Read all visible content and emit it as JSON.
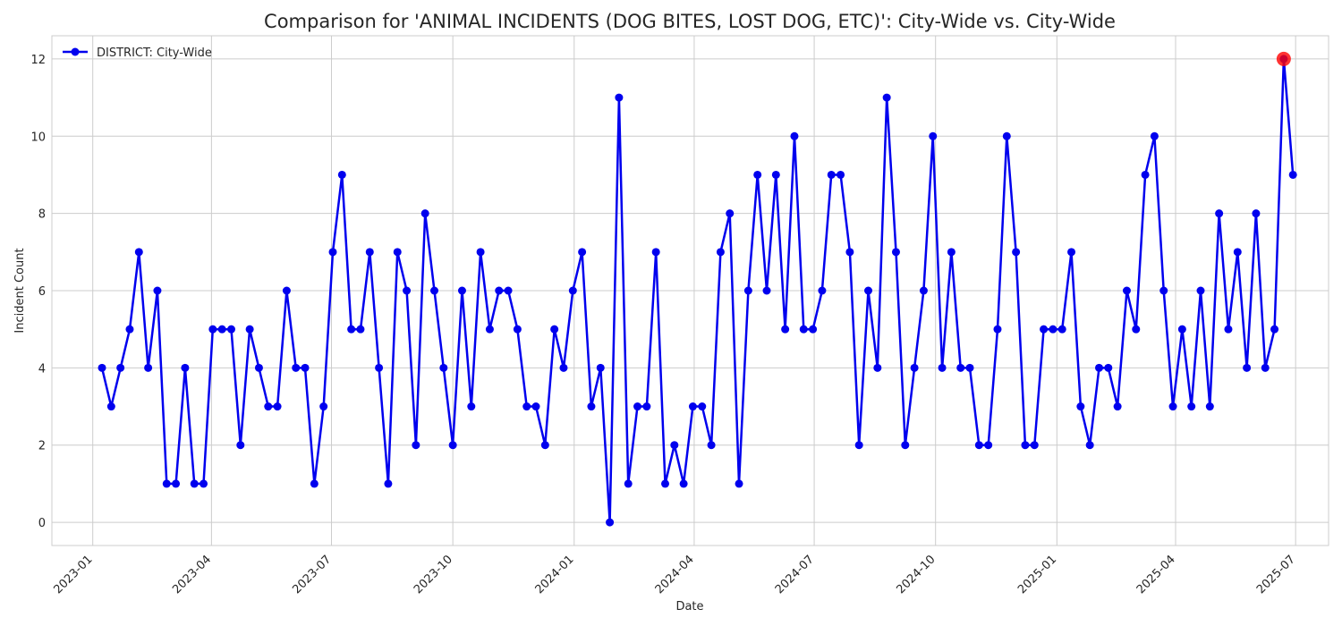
{
  "chart_data": {
    "type": "line",
    "title": "Comparison for 'ANIMAL INCIDENTS (DOG BITES, LOST DOG, ETC)': City-Wide vs. City-Wide",
    "xlabel": "Date",
    "ylabel": "Incident Count",
    "x_range": [
      "2022-12-01",
      "2025-07-26"
    ],
    "ylim": [
      -0.6,
      12.6
    ],
    "x_ticks": [
      "2023-01",
      "2023-04",
      "2023-07",
      "2023-10",
      "2024-01",
      "2024-04",
      "2024-07",
      "2024-10",
      "2025-01",
      "2025-04",
      "2025-07"
    ],
    "y_ticks": [
      0,
      2,
      4,
      6,
      8,
      10,
      12
    ],
    "grid": true,
    "legend_position": "upper-left",
    "series": [
      {
        "name": "DISTRICT: City-Wide",
        "color": "#0000ee",
        "x": [
          "2023-01-08",
          "2023-01-15",
          "2023-01-22",
          "2023-01-29",
          "2023-02-05",
          "2023-02-12",
          "2023-02-19",
          "2023-02-26",
          "2023-03-05",
          "2023-03-12",
          "2023-03-19",
          "2023-03-26",
          "2023-04-02",
          "2023-04-09",
          "2023-04-16",
          "2023-04-23",
          "2023-04-30",
          "2023-05-07",
          "2023-05-14",
          "2023-05-21",
          "2023-05-28",
          "2023-06-04",
          "2023-06-11",
          "2023-06-18",
          "2023-06-25",
          "2023-07-02",
          "2023-07-09",
          "2023-07-16",
          "2023-07-23",
          "2023-07-30",
          "2023-08-06",
          "2023-08-13",
          "2023-08-20",
          "2023-08-27",
          "2023-09-03",
          "2023-09-10",
          "2023-09-17",
          "2023-09-24",
          "2023-10-01",
          "2023-10-08",
          "2023-10-15",
          "2023-10-22",
          "2023-10-29",
          "2023-11-05",
          "2023-11-12",
          "2023-11-19",
          "2023-11-26",
          "2023-12-03",
          "2023-12-10",
          "2023-12-17",
          "2023-12-24",
          "2023-12-31",
          "2024-01-07",
          "2024-01-14",
          "2024-01-21",
          "2024-01-28",
          "2024-02-04",
          "2024-02-11",
          "2024-02-18",
          "2024-02-25",
          "2024-03-03",
          "2024-03-10",
          "2024-03-17",
          "2024-03-24",
          "2024-03-31",
          "2024-04-07",
          "2024-04-14",
          "2024-04-21",
          "2024-04-28",
          "2024-05-05",
          "2024-05-12",
          "2024-05-19",
          "2024-05-26",
          "2024-06-02",
          "2024-06-09",
          "2024-06-16",
          "2024-06-23",
          "2024-06-30",
          "2024-07-07",
          "2024-07-14",
          "2024-07-21",
          "2024-07-28",
          "2024-08-04",
          "2024-08-11",
          "2024-08-18",
          "2024-08-25",
          "2024-09-01",
          "2024-09-08",
          "2024-09-15",
          "2024-09-22",
          "2024-09-29",
          "2024-10-06",
          "2024-10-13",
          "2024-10-20",
          "2024-10-27",
          "2024-11-03",
          "2024-11-10",
          "2024-11-17",
          "2024-11-24",
          "2024-12-01",
          "2024-12-08",
          "2024-12-15",
          "2024-12-22",
          "2024-12-29",
          "2025-01-05",
          "2025-01-12",
          "2025-01-19",
          "2025-01-26",
          "2025-02-02",
          "2025-02-09",
          "2025-02-16",
          "2025-02-23",
          "2025-03-02",
          "2025-03-09",
          "2025-03-16",
          "2025-03-23",
          "2025-03-30",
          "2025-04-06",
          "2025-04-13",
          "2025-04-20",
          "2025-04-27",
          "2025-05-04",
          "2025-05-11",
          "2025-05-18",
          "2025-05-25",
          "2025-06-01",
          "2025-06-08",
          "2025-06-15",
          "2025-06-22",
          "2025-06-29"
        ],
        "values": [
          4,
          3,
          4,
          5,
          7,
          4,
          6,
          1,
          1,
          4,
          1,
          1,
          5,
          5,
          5,
          2,
          5,
          4,
          3,
          3,
          6,
          4,
          4,
          1,
          3,
          7,
          9,
          5,
          5,
          7,
          4,
          1,
          7,
          6,
          2,
          8,
          6,
          4,
          2,
          6,
          3,
          7,
          5,
          6,
          6,
          5,
          3,
          3,
          2,
          5,
          4,
          6,
          7,
          3,
          4,
          0,
          11,
          1,
          3,
          3,
          7,
          1,
          2,
          1,
          3,
          3,
          2,
          7,
          8,
          1,
          6,
          9,
          6,
          9,
          5,
          10,
          5,
          5,
          6,
          9,
          9,
          7,
          2,
          6,
          4,
          11,
          7,
          2,
          4,
          6,
          10,
          4,
          7,
          4,
          4,
          2,
          2,
          5,
          10,
          7,
          2,
          2,
          5,
          5,
          5,
          7,
          3,
          2,
          4,
          4,
          3,
          6,
          5,
          9,
          10,
          6,
          3,
          5,
          3,
          6,
          3,
          8,
          5,
          7,
          4,
          8,
          4,
          5,
          12,
          9
        ]
      }
    ],
    "highlight": {
      "x": "2025-06-22",
      "value": 12,
      "color": "#ff0000"
    }
  }
}
